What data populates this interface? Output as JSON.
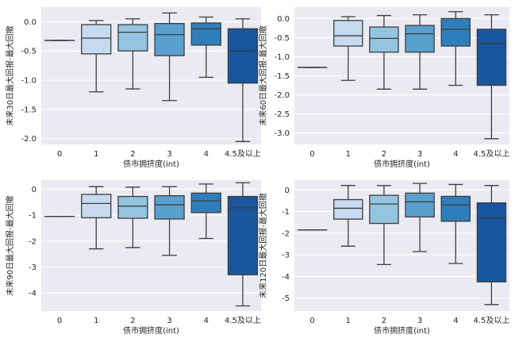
{
  "colors": {
    "plot_bg": "#eaeaf2",
    "grid": "#ffffff",
    "line": "#3d3d3d",
    "boxes": [
      "#ffffff",
      "#c6dbef",
      "#94c4df",
      "#5aa0cf",
      "#2f7ebc",
      "#1a569d"
    ]
  },
  "chart_data": [
    {
      "type": "box",
      "xlabel": "债市拥挤度(int)",
      "ylabel": "未来30日最大回报-最大回撤",
      "categories": [
        "0",
        "1",
        "2",
        "3",
        "4",
        "4.5及以上"
      ],
      "ylim": [
        -2.1,
        0.25
      ],
      "yticks": [
        0.0,
        -0.5,
        -1.0,
        -1.5,
        -2.0
      ],
      "ytick_labels": [
        "0.0",
        "-0.5",
        "-1.0",
        "-1.5",
        "-2.0"
      ],
      "boxes": [
        {
          "whislo": -0.32,
          "q1": -0.32,
          "med": -0.32,
          "q3": -0.32,
          "whishi": -0.32
        },
        {
          "whislo": -1.2,
          "q1": -0.55,
          "med": -0.28,
          "q3": -0.05,
          "whishi": 0.02
        },
        {
          "whislo": -1.15,
          "q1": -0.5,
          "med": -0.18,
          "q3": -0.05,
          "whishi": 0.05
        },
        {
          "whislo": -1.35,
          "q1": -0.58,
          "med": -0.22,
          "q3": -0.03,
          "whishi": 0.15
        },
        {
          "whislo": -0.95,
          "q1": -0.4,
          "med": -0.12,
          "q3": -0.02,
          "whishi": 0.08
        },
        {
          "whislo": -2.05,
          "q1": -1.05,
          "med": -0.5,
          "q3": -0.12,
          "whishi": 0.05
        }
      ]
    },
    {
      "type": "box",
      "xlabel": "债市拥挤度(int)",
      "ylabel": "未来60日最大回报-最大回撤",
      "categories": [
        "0",
        "1",
        "2",
        "3",
        "4",
        "4.5及以上"
      ],
      "ylim": [
        -3.3,
        0.3
      ],
      "yticks": [
        0.0,
        -0.5,
        -1.0,
        -1.5,
        -2.0,
        -2.5,
        -3.0
      ],
      "ytick_labels": [
        "0.0",
        "-0.5",
        "-1.0",
        "-1.5",
        "-2.0",
        "-2.5",
        "-3.0"
      ],
      "boxes": [
        {
          "whislo": -1.28,
          "q1": -1.28,
          "med": -1.28,
          "q3": -1.28,
          "whishi": -1.28
        },
        {
          "whislo": -1.62,
          "q1": -0.72,
          "med": -0.45,
          "q3": -0.05,
          "whishi": 0.05
        },
        {
          "whislo": -1.85,
          "q1": -0.88,
          "med": -0.52,
          "q3": -0.22,
          "whishi": 0.08
        },
        {
          "whislo": -1.85,
          "q1": -0.88,
          "med": -0.4,
          "q3": -0.18,
          "whishi": 0.1
        },
        {
          "whislo": -1.75,
          "q1": -0.72,
          "med": -0.28,
          "q3": 0.0,
          "whishi": 0.18
        },
        {
          "whislo": -3.15,
          "q1": -1.75,
          "med": -0.65,
          "q3": -0.28,
          "whishi": 0.1
        }
      ]
    },
    {
      "type": "box",
      "xlabel": "债市拥挤度(int)",
      "ylabel": "未来90日最大回报-最大回撤",
      "categories": [
        "0",
        "1",
        "2",
        "3",
        "4",
        "4.5及以上"
      ],
      "ylim": [
        -4.7,
        0.35
      ],
      "yticks": [
        0,
        -1,
        -2,
        -3,
        -4
      ],
      "ytick_labels": [
        "0",
        "-1",
        "-2",
        "-3",
        "-4"
      ],
      "boxes": [
        {
          "whislo": -1.05,
          "q1": -1.05,
          "med": -1.05,
          "q3": -1.05,
          "whishi": -1.05
        },
        {
          "whislo": -2.3,
          "q1": -1.1,
          "med": -0.55,
          "q3": -0.2,
          "whishi": 0.1
        },
        {
          "whislo": -2.25,
          "q1": -1.12,
          "med": -0.65,
          "q3": -0.28,
          "whishi": 0.08
        },
        {
          "whislo": -2.55,
          "q1": -1.15,
          "med": -0.6,
          "q3": -0.25,
          "whishi": 0.1
        },
        {
          "whislo": -1.9,
          "q1": -0.9,
          "med": -0.45,
          "q3": -0.15,
          "whishi": 0.2
        },
        {
          "whislo": -4.5,
          "q1": -3.3,
          "med": -0.72,
          "q3": -0.28,
          "whishi": 0.25
        }
      ]
    },
    {
      "type": "box",
      "xlabel": "债市拥挤度(int)",
      "ylabel": "未来120日最大回报-最大回撤",
      "categories": [
        "0",
        "1",
        "2",
        "3",
        "4",
        "4.5及以上"
      ],
      "ylim": [
        -5.6,
        0.45
      ],
      "yticks": [
        0,
        -1,
        -2,
        -3,
        -4,
        -5
      ],
      "ytick_labels": [
        "0",
        "-1",
        "-2",
        "-3",
        "-4",
        "-5"
      ],
      "boxes": [
        {
          "whislo": -1.85,
          "q1": -1.85,
          "med": -1.85,
          "q3": -1.85,
          "whishi": -1.85
        },
        {
          "whislo": -2.6,
          "q1": -1.35,
          "med": -0.85,
          "q3": -0.45,
          "whishi": 0.2
        },
        {
          "whislo": -3.45,
          "q1": -1.55,
          "med": -0.65,
          "q3": -0.25,
          "whishi": 0.2
        },
        {
          "whislo": -2.85,
          "q1": -1.25,
          "med": -0.55,
          "q3": -0.15,
          "whishi": 0.3
        },
        {
          "whislo": -3.4,
          "q1": -1.45,
          "med": -0.7,
          "q3": -0.3,
          "whishi": 0.25
        },
        {
          "whislo": -5.3,
          "q1": -4.25,
          "med": -1.3,
          "q3": -0.6,
          "whishi": 0.2
        }
      ]
    }
  ]
}
